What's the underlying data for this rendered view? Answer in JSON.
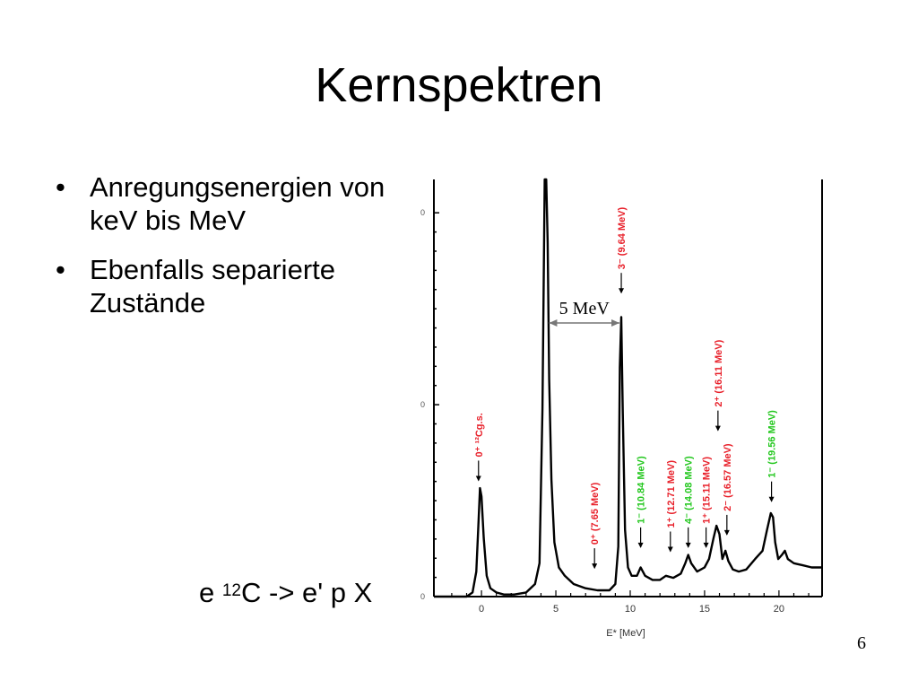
{
  "slide": {
    "title": "Kernspektren",
    "bullets": [
      "Anregungsenergien von keV bis MeV",
      "Ebenfalls separierte Zustände"
    ],
    "caption": {
      "pre": "e  ",
      "sup": "12",
      "post": "C -> e' p X"
    },
    "page_number": "6"
  },
  "chart_data": {
    "type": "line",
    "title": "",
    "xlabel": "E* [MeV]",
    "ylabel": "",
    "xlim": [
      -3.2,
      22.9
    ],
    "ylim": [
      0,
      1
    ],
    "x_ticks": [
      0,
      5,
      10,
      15,
      20
    ],
    "y_tick_fractions": [
      0,
      0.46,
      0.92
    ],
    "y_tick_labels": [
      "0",
      "0",
      "0"
    ],
    "grid": false,
    "colors": {
      "line": "#000000",
      "red_label": "#e8202a",
      "green_label": "#22c71d"
    },
    "series": [
      {
        "values_note": "spectrum, y as fraction of plot height",
        "x": [
          -3.2,
          -1.0,
          -0.6,
          -0.35,
          -0.2,
          -0.1,
          0.0,
          0.15,
          0.35,
          0.6,
          1.0,
          1.5,
          2.2,
          3.0,
          3.6,
          3.9,
          4.1,
          4.25,
          4.35,
          4.45,
          4.55,
          4.7,
          4.9,
          5.2,
          5.6,
          6.2,
          7.0,
          7.8,
          8.6,
          9.0,
          9.2,
          9.3,
          9.4,
          9.5,
          9.65,
          9.85,
          10.1,
          10.45,
          10.7,
          11.0,
          11.5,
          12.0,
          12.4,
          12.9,
          13.4,
          13.7,
          13.9,
          14.1,
          14.5,
          15.0,
          15.3,
          15.6,
          15.8,
          16.0,
          16.2,
          16.4,
          16.6,
          16.9,
          17.3,
          17.8,
          18.4,
          18.9,
          19.2,
          19.45,
          19.6,
          19.75,
          19.95,
          20.2,
          20.4,
          20.6,
          21.0,
          21.6,
          22.2,
          22.9
        ],
        "values": [
          0.0,
          0.0,
          0.01,
          0.06,
          0.18,
          0.26,
          0.24,
          0.14,
          0.05,
          0.02,
          0.01,
          0.005,
          0.005,
          0.01,
          0.03,
          0.08,
          0.45,
          1.0,
          1.0,
          0.85,
          0.52,
          0.28,
          0.13,
          0.07,
          0.05,
          0.03,
          0.02,
          0.015,
          0.015,
          0.03,
          0.12,
          0.55,
          0.67,
          0.44,
          0.16,
          0.07,
          0.05,
          0.05,
          0.07,
          0.05,
          0.04,
          0.04,
          0.05,
          0.045,
          0.055,
          0.08,
          0.1,
          0.08,
          0.06,
          0.07,
          0.09,
          0.14,
          0.17,
          0.15,
          0.09,
          0.11,
          0.085,
          0.065,
          0.06,
          0.065,
          0.09,
          0.11,
          0.16,
          0.2,
          0.19,
          0.13,
          0.09,
          0.1,
          0.11,
          0.09,
          0.08,
          0.075,
          0.07,
          0.07
        ]
      }
    ],
    "peak_labels": [
      {
        "x": -0.2,
        "text": "0⁺ ¹²Cg.s.",
        "color": "red",
        "y_frac": 0.27
      },
      {
        "x": 7.6,
        "text": "0⁺ (7.65 MeV)",
        "color": "red",
        "y_frac": 0.06
      },
      {
        "x": 9.4,
        "text": "3⁻ (9.64 MeV)",
        "color": "red",
        "y_frac": 0.72
      },
      {
        "x": 10.7,
        "text": "1⁻ (10.84 MeV)",
        "color": "green",
        "y_frac": 0.11
      },
      {
        "x": 12.7,
        "text": "1⁺ (12.71 MeV)",
        "color": "red",
        "y_frac": 0.1
      },
      {
        "x": 13.9,
        "text": "4⁻ (14.08 MeV)",
        "color": "green",
        "y_frac": 0.11
      },
      {
        "x": 15.1,
        "text": "1⁺ (15.11 MeV)",
        "color": "red",
        "y_frac": 0.11
      },
      {
        "x": 15.9,
        "text": "2⁺ (16.11 MeV)",
        "color": "red",
        "y_frac": 0.39
      },
      {
        "x": 16.5,
        "text": "2⁻ (16.57 MeV)",
        "color": "red",
        "y_frac": 0.14
      },
      {
        "x": 19.5,
        "text": "1⁻ (19.56 MeV)",
        "color": "green",
        "y_frac": 0.22
      }
    ],
    "annotations": [
      {
        "text": "5 MeV",
        "x_from": 4.3,
        "x_to": 9.4
      }
    ]
  }
}
